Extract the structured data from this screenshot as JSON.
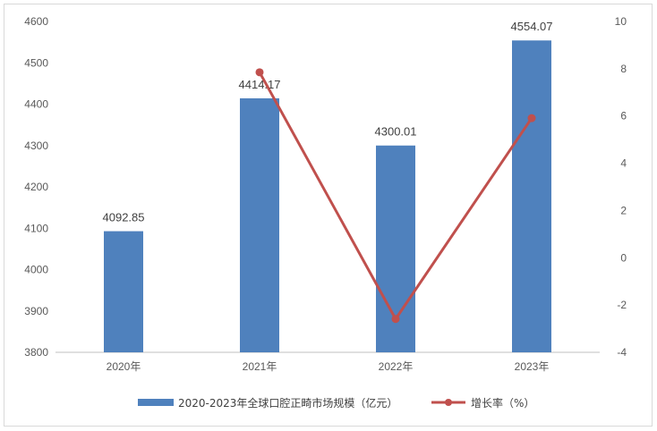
{
  "chart_data": {
    "type": "bar",
    "categories": [
      "2020年",
      "2021年",
      "2022年",
      "2023年"
    ],
    "series": [
      {
        "name": "2020-2023年全球口腔正畸市场规模（亿元）",
        "type": "bar",
        "axis": "left",
        "values": [
          4092.85,
          4414.17,
          4300.01,
          4554.07
        ],
        "labels": [
          "4092.85",
          "4414.17",
          "4300.01",
          "4554.07"
        ],
        "color": "#4f81bd"
      },
      {
        "name": "增长率（%）",
        "type": "line",
        "axis": "right",
        "values": [
          null,
          7.85,
          -2.59,
          5.91
        ],
        "color": "#c0504d"
      }
    ],
    "y_left": {
      "min": 3800,
      "max": 4600,
      "ticks": [
        "3800",
        "3900",
        "4000",
        "4100",
        "4200",
        "4300",
        "4400",
        "4500",
        "4600"
      ]
    },
    "y_right": {
      "min": -4,
      "max": 10,
      "ticks": [
        "-4",
        "-2",
        "0",
        "2",
        "4",
        "6",
        "8",
        "10"
      ]
    },
    "legend_position": "bottom",
    "grid": false
  }
}
